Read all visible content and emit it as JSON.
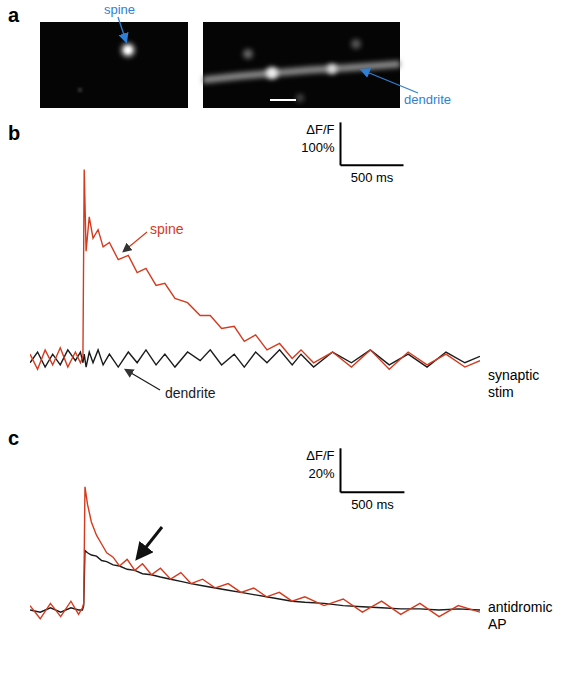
{
  "panel_a": {
    "letter": "a",
    "labels": [
      "spine",
      "dendrite"
    ]
  },
  "chart_data": [
    {
      "type": "line",
      "letter": "b",
      "annotation": "synaptic stim",
      "tick_labels": false,
      "xlim": [
        0,
        3570
      ],
      "ylim": [
        -120,
        560
      ],
      "x": [
        0,
        60,
        120,
        180,
        240,
        300,
        360,
        400,
        420,
        430,
        445,
        470,
        500,
        540,
        580,
        630,
        700,
        780,
        850,
        920,
        1000,
        1070,
        1150,
        1250,
        1350,
        1430,
        1520,
        1620,
        1700,
        1790,
        1880,
        1980,
        2080,
        2150,
        2250,
        2400,
        2550,
        2700,
        2850,
        3000,
        3150,
        3300,
        3450,
        3570
      ],
      "series": [
        {
          "name": "spine",
          "color": "#d63a1e",
          "values": [
            10,
            -25,
            20,
            -15,
            25,
            -20,
            15,
            -10,
            5,
            440,
            250,
            330,
            280,
            300,
            260,
            270,
            230,
            240,
            200,
            210,
            170,
            175,
            140,
            130,
            100,
            100,
            70,
            75,
            40,
            55,
            20,
            35,
            0,
            20,
            -10,
            15,
            -20,
            20,
            -25,
            15,
            -15,
            10,
            -20,
            -5
          ]
        },
        {
          "name": "dendrite",
          "color": "#1a1a1a",
          "values": [
            -10,
            15,
            -20,
            10,
            -15,
            20,
            -5,
            15,
            -10,
            10,
            -20,
            15,
            -10,
            20,
            -15,
            10,
            -20,
            15,
            -10,
            20,
            -15,
            10,
            -20,
            15,
            -5,
            20,
            -15,
            10,
            -20,
            15,
            -10,
            20,
            -15,
            10,
            -20,
            15,
            -10,
            20,
            -15,
            10,
            -20,
            15,
            -10,
            5
          ]
        }
      ],
      "scale_bar": {
        "x": {
          "value": 500,
          "label": "500 ms"
        },
        "y": {
          "value": 100,
          "label": "100%"
        },
        "y_title": "ΔF/F"
      }
    },
    {
      "type": "line",
      "letter": "c",
      "annotation": "antidromic AP",
      "tick_labels": false,
      "xlim": [
        0,
        3520
      ],
      "ylim": [
        -25,
        75
      ],
      "x": [
        0,
        80,
        160,
        240,
        320,
        380,
        410,
        420,
        430,
        450,
        480,
        520,
        560,
        600,
        650,
        700,
        760,
        820,
        880,
        950,
        1020,
        1100,
        1180,
        1260,
        1350,
        1450,
        1550,
        1650,
        1750,
        1850,
        1950,
        2050,
        2150,
        2300,
        2450,
        2600,
        2750,
        2900,
        3050,
        3200,
        3350,
        3520
      ],
      "series": [
        {
          "color": "#d63a1e",
          "values": [
            2,
            -4,
            3,
            -3,
            4,
            -2,
            1,
            3,
            56,
            48,
            40,
            34,
            30,
            26,
            24,
            20,
            23,
            18,
            21,
            16,
            19,
            14,
            17,
            12,
            14,
            10,
            12,
            8,
            10,
            6,
            8,
            4,
            6,
            2,
            5,
            -1,
            4,
            -2,
            3,
            -3,
            2,
            -1
          ]
        },
        {
          "color": "#1a1a1a",
          "values": [
            0,
            -1,
            1,
            -1,
            1,
            0,
            0,
            2,
            27,
            26,
            25,
            24.5,
            22.5,
            22,
            20.5,
            20,
            18.5,
            18,
            16.5,
            16,
            15,
            14,
            13,
            12,
            11,
            10,
            9,
            8,
            7,
            6,
            5,
            4,
            3.5,
            3,
            2,
            1.5,
            1,
            0.5,
            0.5,
            0,
            0.5,
            0
          ]
        }
      ],
      "scale_bar": {
        "x": {
          "value": 500,
          "label": "500 ms"
        },
        "y": {
          "value": 20,
          "label": "20%"
        },
        "y_title": "ΔF/F"
      }
    }
  ]
}
